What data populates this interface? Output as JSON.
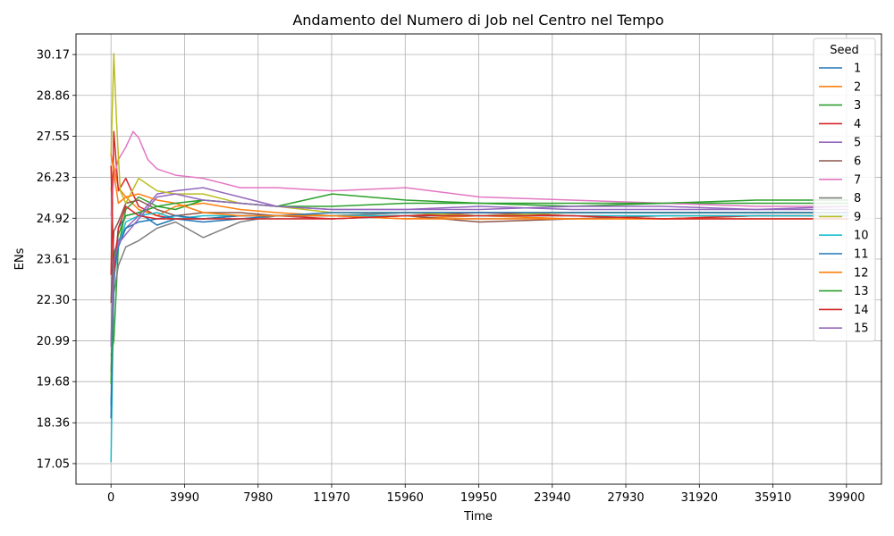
{
  "chart_data": {
    "type": "line",
    "title": "Andamento del Numero di Job nel Centro nel Tempo",
    "xlabel": "Time",
    "ylabel": "ENs",
    "xlim": [
      -1900,
      41800
    ],
    "ylim": [
      16.39,
      30.83
    ],
    "x_ticks": [
      0,
      3990,
      7980,
      11970,
      15960,
      19950,
      23940,
      27930,
      31920,
      35910,
      39900
    ],
    "x_tick_labels": [
      "0",
      "3990",
      "7980",
      "11970",
      "15960",
      "19950",
      "23940",
      "27930",
      "31920",
      "35910",
      "39900"
    ],
    "y_ticks": [
      17.05,
      18.36,
      19.68,
      20.99,
      22.3,
      23.61,
      24.92,
      26.23,
      27.55,
      28.86,
      30.17
    ],
    "y_tick_labels": [
      "17.05",
      "18.36",
      "19.68",
      "20.99",
      "22.30",
      "23.61",
      "24.92",
      "26.23",
      "27.55",
      "28.86",
      "30.17"
    ],
    "grid": true,
    "legend": {
      "title": "Seed",
      "placement": "top-right"
    },
    "series": [
      {
        "name": "1",
        "color": "#1f77b4",
        "x": [
          0,
          150,
          400,
          800,
          1500,
          2500,
          3500,
          5000,
          7000,
          9000,
          12000,
          16000,
          20000,
          25000,
          30000,
          35000,
          40000
        ],
        "values": [
          18.9,
          22.8,
          24.6,
          25.0,
          25.1,
          24.7,
          24.9,
          24.8,
          24.9,
          25.0,
          25.0,
          25.1,
          25.0,
          25.1,
          25.1,
          25.1,
          25.1
        ]
      },
      {
        "name": "2",
        "color": "#ff7f0e",
        "x": [
          0,
          150,
          400,
          800,
          1500,
          2500,
          3500,
          5000,
          7000,
          9000,
          12000,
          16000,
          20000,
          25000,
          30000,
          35000,
          40000
        ],
        "values": [
          25.8,
          26.6,
          25.9,
          25.6,
          25.2,
          25.0,
          25.3,
          25.4,
          25.2,
          25.1,
          25.0,
          24.9,
          25.0,
          24.9,
          24.9,
          25.0,
          25.0
        ]
      },
      {
        "name": "3",
        "color": "#2ca02c",
        "x": [
          0,
          150,
          400,
          800,
          1500,
          2500,
          3500,
          5000,
          7000,
          9000,
          12000,
          16000,
          20000,
          25000,
          30000,
          35000,
          40000
        ],
        "values": [
          20.5,
          21.0,
          24.0,
          25.2,
          25.6,
          25.3,
          25.2,
          25.5,
          25.4,
          25.3,
          25.7,
          25.5,
          25.4,
          25.3,
          25.4,
          25.4,
          25.4
        ]
      },
      {
        "name": "4",
        "color": "#d62728",
        "x": [
          0,
          150,
          400,
          800,
          1500,
          2500,
          3500,
          5000,
          7000,
          9000,
          12000,
          16000,
          20000,
          25000,
          30000,
          35000,
          40000
        ],
        "values": [
          23.1,
          27.7,
          25.8,
          26.2,
          25.3,
          25.0,
          24.9,
          24.9,
          25.0,
          25.0,
          24.9,
          25.0,
          25.1,
          25.0,
          24.9,
          25.0,
          25.0
        ]
      },
      {
        "name": "5",
        "color": "#9467bd",
        "x": [
          0,
          150,
          400,
          800,
          1500,
          2500,
          3500,
          5000,
          7000,
          9000,
          12000,
          16000,
          20000,
          25000,
          30000,
          35000,
          40000
        ],
        "values": [
          21.0,
          23.8,
          24.2,
          24.6,
          25.0,
          25.7,
          25.8,
          25.9,
          25.6,
          25.3,
          25.2,
          25.2,
          25.3,
          25.2,
          25.2,
          25.2,
          25.2
        ]
      },
      {
        "name": "6",
        "color": "#8c564b",
        "x": [
          0,
          150,
          400,
          800,
          1500,
          2500,
          3500,
          5000,
          7000,
          9000,
          12000,
          16000,
          20000,
          25000,
          30000,
          35000,
          40000
        ],
        "values": [
          22.2,
          24.5,
          24.8,
          25.4,
          25.5,
          25.2,
          25.0,
          25.1,
          25.1,
          25.0,
          25.0,
          25.0,
          24.8,
          24.9,
          25.0,
          25.0,
          25.0
        ]
      },
      {
        "name": "7",
        "color": "#e377c2",
        "x": [
          0,
          150,
          400,
          800,
          1200,
          1500,
          2000,
          2500,
          3500,
          5000,
          7000,
          9000,
          12000,
          16000,
          20000,
          25000,
          30000,
          35000,
          40000
        ],
        "values": [
          25.0,
          26.2,
          26.8,
          27.2,
          27.7,
          27.5,
          26.8,
          26.5,
          26.3,
          26.2,
          25.9,
          25.9,
          25.8,
          25.9,
          25.6,
          25.5,
          25.4,
          25.3,
          25.3
        ]
      },
      {
        "name": "8",
        "color": "#7f7f7f",
        "x": [
          0,
          150,
          400,
          800,
          1500,
          2500,
          3500,
          5000,
          7000,
          9000,
          12000,
          16000,
          20000,
          25000,
          30000,
          35000,
          40000
        ],
        "values": [
          20.0,
          22.5,
          23.4,
          24.0,
          24.2,
          24.6,
          24.8,
          24.3,
          24.8,
          25.0,
          25.0,
          25.1,
          25.1,
          25.1,
          25.1,
          25.1,
          25.1
        ]
      },
      {
        "name": "9",
        "color": "#bcbd22",
        "x": [
          0,
          150,
          300,
          500,
          800,
          1500,
          2500,
          3500,
          5000,
          7000,
          9000,
          12000,
          16000,
          20000,
          25000,
          30000,
          35000,
          40000
        ],
        "values": [
          26.9,
          30.2,
          28.0,
          25.8,
          25.4,
          26.2,
          25.8,
          25.7,
          25.7,
          25.4,
          25.3,
          25.1,
          25.1,
          25.0,
          25.1,
          25.1,
          25.1,
          25.1
        ]
      },
      {
        "name": "10",
        "color": "#17becf",
        "x": [
          0,
          150,
          400,
          800,
          1500,
          2500,
          3500,
          5000,
          7000,
          9000,
          12000,
          16000,
          20000,
          25000,
          30000,
          35000,
          40000
        ],
        "values": [
          17.1,
          23.0,
          24.0,
          24.8,
          25.0,
          25.1,
          24.9,
          25.0,
          25.0,
          25.0,
          25.0,
          25.0,
          25.0,
          25.0,
          25.0,
          25.0,
          25.0
        ]
      },
      {
        "name": "11",
        "color": "#1f77b4",
        "x": [
          0,
          150,
          400,
          800,
          1500,
          2500,
          3500,
          5000,
          7000,
          9000,
          12000,
          16000,
          20000,
          25000,
          30000,
          35000,
          40000
        ],
        "values": [
          18.5,
          23.2,
          24.0,
          24.6,
          24.8,
          24.9,
          25.0,
          24.9,
          25.0,
          25.0,
          25.1,
          25.1,
          25.1,
          25.1,
          25.1,
          25.1,
          25.1
        ]
      },
      {
        "name": "12",
        "color": "#ff7f0e",
        "x": [
          0,
          150,
          400,
          800,
          1500,
          2500,
          3500,
          5000,
          7000,
          9000,
          12000,
          16000,
          20000,
          25000,
          30000,
          35000,
          40000
        ],
        "values": [
          27.0,
          26.4,
          25.4,
          25.6,
          25.7,
          25.5,
          25.4,
          25.1,
          25.0,
          25.0,
          25.0,
          24.9,
          24.9,
          24.9,
          24.9,
          24.9,
          24.9
        ]
      },
      {
        "name": "13",
        "color": "#2ca02c",
        "x": [
          0,
          150,
          400,
          800,
          1500,
          2500,
          3500,
          5000,
          7000,
          9000,
          12000,
          16000,
          20000,
          25000,
          30000,
          35000,
          40000
        ],
        "values": [
          19.6,
          23.6,
          24.4,
          25.0,
          25.1,
          25.3,
          25.4,
          25.5,
          25.4,
          25.3,
          25.3,
          25.4,
          25.4,
          25.4,
          25.4,
          25.5,
          25.5
        ]
      },
      {
        "name": "14",
        "color": "#d62728",
        "x": [
          0,
          150,
          400,
          800,
          1500,
          2500,
          3500,
          5000,
          7000,
          9000,
          12000,
          16000,
          20000,
          25000,
          30000,
          35000,
          40000
        ],
        "values": [
          26.6,
          23.1,
          24.6,
          25.3,
          25.0,
          24.9,
          24.9,
          24.9,
          24.9,
          24.9,
          24.9,
          25.0,
          25.0,
          25.0,
          24.9,
          24.9,
          24.9
        ]
      },
      {
        "name": "15",
        "color": "#9467bd",
        "x": [
          0,
          150,
          400,
          800,
          1500,
          2500,
          3500,
          5000,
          7000,
          9000,
          12000,
          16000,
          20000,
          25000,
          30000,
          35000,
          40000
        ],
        "values": [
          20.8,
          23.5,
          24.1,
          24.4,
          24.9,
          25.6,
          25.7,
          25.5,
          25.4,
          25.3,
          25.2,
          25.2,
          25.2,
          25.3,
          25.3,
          25.2,
          25.3
        ]
      }
    ]
  }
}
